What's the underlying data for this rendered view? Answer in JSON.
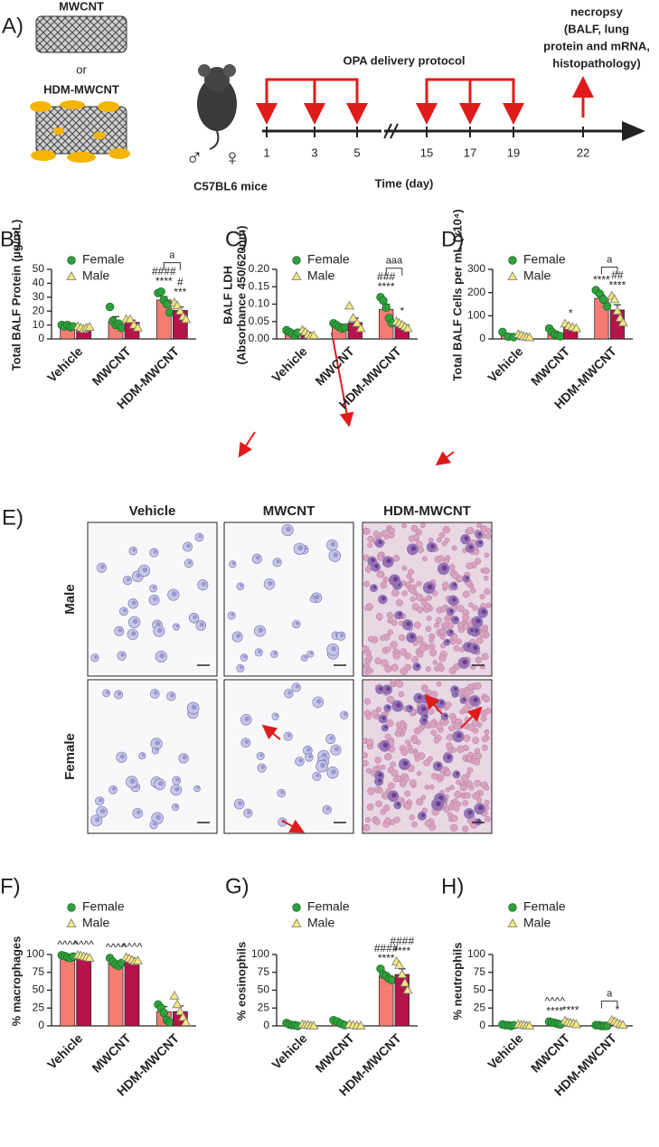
{
  "panel_a": {
    "label": "A)",
    "particles": [
      "MWCNT",
      "or",
      "HDM-MWCNT"
    ],
    "sex_symbols": [
      "♂",
      "♀"
    ],
    "mice": "C57BL6 mice",
    "protocol": "OPA delivery protocol",
    "necropsy": [
      "necropsy",
      "(BALF, lung",
      "protein and mRNA,",
      "histopathology)"
    ],
    "days": [
      1,
      3,
      5,
      15,
      17,
      19,
      22
    ],
    "xlabel": "Time (day)"
  },
  "panel_e": {
    "label": "E)",
    "columns": [
      "Vehicle",
      "MWCNT",
      "HDM-MWCNT"
    ],
    "rows": [
      "Male",
      "Female"
    ]
  },
  "chart_data": [
    {
      "type": "bar",
      "panel": "B)",
      "ylabel": [
        "Total BALF Protein (µg/mL)"
      ],
      "categories": [
        "Vehicle",
        "MWCNT",
        "HDM-MWCNT"
      ],
      "ylim": [
        0,
        50
      ],
      "yticks": [
        0,
        10,
        20,
        30,
        40,
        50
      ],
      "series": [
        {
          "name": "Female",
          "color": "#f47c73",
          "marker": "circle",
          "marker_color": "#2fa13c",
          "values": [
            9.5,
            12.5,
            28
          ],
          "errors": [
            0.7,
            3.5,
            2.5
          ],
          "points": [
            [
              10,
              9,
              10,
              8.5,
              9
            ],
            [
              23,
              13,
              10,
              11,
              8
            ],
            [
              33,
              34,
              28,
              25,
              19
            ]
          ],
          "annotations": [
            null,
            null,
            [
              "####",
              "****"
            ]
          ]
        },
        {
          "name": "Male",
          "color": "#b5134a",
          "marker": "triangle",
          "marker_color": "#f3e97c",
          "values": [
            8,
            12,
            20.5
          ],
          "errors": [
            0.5,
            1.5,
            2.5
          ],
          "points": [
            [
              9,
              8,
              7,
              8,
              8.5
            ],
            [
              14,
              14,
              10,
              8
            ],
            [
              26,
              24,
              20,
              16,
              14
            ]
          ],
          "annotations": [
            null,
            null,
            [
              "#",
              "***"
            ]
          ]
        }
      ],
      "brackets": [
        {
          "category": 2,
          "label": "a"
        }
      ]
    },
    {
      "type": "bar",
      "panel": "C)",
      "ylabel": [
        "BALF LDH",
        "(Absorbance 450/620nm)"
      ],
      "categories": [
        "Vehicle",
        "MWCNT",
        "HDM-MWCNT"
      ],
      "ylim": [
        0,
        0.2
      ],
      "yticks": [
        {
          "value": 0,
          "label": "0.00"
        },
        {
          "value": 0.05,
          "label": "0.05"
        },
        {
          "value": 0.1,
          "label": "0.10"
        },
        {
          "value": 0.15,
          "label": "0.15"
        },
        {
          "value": 0.2,
          "label": "0.20"
        }
      ],
      "series": [
        {
          "name": "Female",
          "color": "#f47c73",
          "marker": "circle",
          "marker_color": "#2fa13c",
          "values": [
            0.018,
            0.037,
            0.085
          ],
          "errors": [
            0.003,
            0.005,
            0.015
          ],
          "points": [
            [
              0.025,
              0.02,
              0.015,
              0.01,
              0.018
            ],
            [
              0.045,
              0.04,
              0.035,
              0.03,
              0.033
            ],
            [
              0.12,
              0.11,
              0.09,
              0.06,
              0.045
            ]
          ],
          "annotations": [
            null,
            null,
            [
              "###",
              "****"
            ]
          ]
        },
        {
          "name": "Male",
          "color": "#b5134a",
          "marker": "triangle",
          "marker_color": "#f3e97c",
          "values": [
            0.015,
            0.047,
            0.04
          ],
          "errors": [
            0.004,
            0.013,
            0.004
          ],
          "points": [
            [
              0.025,
              0.02,
              0.012,
              0.008,
              0.01
            ],
            [
              0.095,
              0.06,
              0.045,
              0.03
            ],
            [
              0.05,
              0.045,
              0.04,
              0.035,
              0.03
            ]
          ],
          "annotations": [
            null,
            null,
            [
              "*"
            ]
          ]
        }
      ],
      "brackets": [
        {
          "category": 2,
          "label": "aaa"
        }
      ]
    },
    {
      "type": "bar",
      "panel": "D)",
      "ylabel": [
        "Total BALF Cells per mL (x10⁴)"
      ],
      "categories": [
        "Vehicle",
        "MWCNT",
        "HDM-MWCNT"
      ],
      "ylim": [
        0,
        300
      ],
      "yticks": [
        0,
        100,
        200,
        300
      ],
      "series": [
        {
          "name": "Female",
          "color": "#f47c73",
          "marker": "circle",
          "marker_color": "#2fa13c",
          "values": [
            15,
            25,
            175
          ],
          "errors": [
            8,
            8,
            15
          ],
          "points": [
            [
              30,
              10,
              8
            ],
            [
              45,
              30,
              20,
              15,
              12
            ],
            [
              210,
              195,
              170,
              140
            ]
          ],
          "annotations": [
            null,
            null,
            [
              "****"
            ]
          ]
        },
        {
          "name": "Male",
          "color": "#b5134a",
          "marker": "triangle",
          "marker_color": "#f3e97c",
          "values": [
            12,
            52,
            125
          ],
          "errors": [
            4,
            5,
            22
          ],
          "points": [
            [
              20,
              15,
              10,
              8,
              6
            ],
            [
              65,
              55,
              50,
              45
            ],
            [
              185,
              170,
              120,
              90,
              70
            ]
          ],
          "annotations": [
            null,
            [
              "*"
            ],
            [
              "##",
              "****"
            ]
          ]
        }
      ],
      "brackets": [
        {
          "category": 2,
          "label": "a"
        }
      ]
    },
    {
      "type": "bar",
      "panel": "F)",
      "ylabel": [
        "% macrophages"
      ],
      "categories": [
        "Vehicle",
        "MWCNT",
        "HDM-MWCNT"
      ],
      "ylim": [
        0,
        100
      ],
      "yticks": [
        0,
        25,
        50,
        75,
        100
      ],
      "series": [
        {
          "name": "Female",
          "color": "#f47c73",
          "marker": "circle",
          "marker_color": "#2fa13c",
          "values": [
            97,
            88,
            20
          ],
          "errors": [
            1,
            3,
            7
          ],
          "points": [
            [
              99,
              98,
              96,
              95,
              97
            ],
            [
              95,
              90,
              86,
              84,
              88
            ],
            [
              30,
              25,
              18,
              8,
              5
            ]
          ],
          "annotations": [
            [
              "^^^^"
            ],
            [
              "^^^^"
            ],
            null
          ]
        },
        {
          "name": "Male",
          "color": "#b5134a",
          "marker": "triangle",
          "marker_color": "#f3e97c",
          "values": [
            97,
            93,
            20
          ],
          "errors": [
            1,
            2,
            8
          ],
          "points": [
            [
              99,
              98,
              97,
              96,
              95
            ],
            [
              96,
              94,
              92,
              90,
              91
            ],
            [
              42,
              30,
              20,
              12,
              5
            ]
          ],
          "annotations": [
            [
              "^^^^"
            ],
            [
              "^^^^"
            ],
            null
          ]
        }
      ],
      "brackets": []
    },
    {
      "type": "bar",
      "panel": "G)",
      "ylabel": [
        "% eosinophils"
      ],
      "categories": [
        "Vehicle",
        "MWCNT",
        "HDM-MWCNT"
      ],
      "ylim": [
        0,
        100
      ],
      "yticks": [
        0,
        25,
        50,
        75,
        100
      ],
      "series": [
        {
          "name": "Female",
          "color": "#f47c73",
          "marker": "circle",
          "marker_color": "#2fa13c",
          "values": [
            2,
            4,
            70
          ],
          "errors": [
            1,
            2,
            3
          ],
          "points": [
            [
              4,
              2,
              1,
              1,
              0
            ],
            [
              8,
              6,
              3,
              1
            ],
            [
              80,
              72,
              70,
              66,
              64
            ]
          ],
          "annotations": [
            null,
            null,
            [
              "####",
              "****"
            ]
          ]
        },
        {
          "name": "Male",
          "color": "#b5134a",
          "marker": "triangle",
          "marker_color": "#f3e97c",
          "values": [
            1,
            1,
            72
          ],
          "errors": [
            0.5,
            0.5,
            8
          ],
          "points": [
            [
              2,
              1,
              1,
              0,
              0
            ],
            [
              2,
              1,
              0,
              0
            ],
            [
              90,
              85,
              72,
              60,
              50
            ]
          ],
          "annotations": [
            null,
            null,
            [
              "####",
              "****"
            ]
          ]
        }
      ],
      "brackets": []
    },
    {
      "type": "bar",
      "panel": "H)",
      "ylabel": [
        "% neutrophils"
      ],
      "categories": [
        "Vehicle",
        "MWCNT",
        "HDM-MWCNT"
      ],
      "ylim": [
        0,
        100
      ],
      "yticks": [
        0,
        25,
        50,
        75,
        100
      ],
      "series": [
        {
          "name": "Female",
          "color": "#f47c73",
          "marker": "circle",
          "marker_color": "#2fa13c",
          "values": [
            1,
            4,
            0.5
          ],
          "errors": [
            0.3,
            0.8,
            0.2
          ],
          "points": [
            [
              2,
              1,
              1,
              0,
              1
            ],
            [
              6,
              5,
              4,
              3,
              2
            ],
            [
              1,
              1,
              0,
              0,
              0
            ]
          ],
          "annotations": [
            null,
            [
              "^^^^",
              "****"
            ],
            null
          ]
        },
        {
          "name": "Male",
          "color": "#b5134a",
          "marker": "triangle",
          "marker_color": "#f3e97c",
          "values": [
            1,
            4,
            4
          ],
          "errors": [
            0.3,
            1,
            1.5
          ],
          "points": [
            [
              2,
              1,
              1,
              0,
              0
            ],
            [
              7,
              5,
              4,
              3,
              2
            ],
            [
              8,
              6,
              4,
              2,
              1
            ]
          ],
          "annotations": [
            null,
            [
              "****"
            ],
            [
              "*"
            ]
          ]
        }
      ],
      "brackets": [
        {
          "category": 2,
          "label": "a"
        }
      ]
    }
  ]
}
